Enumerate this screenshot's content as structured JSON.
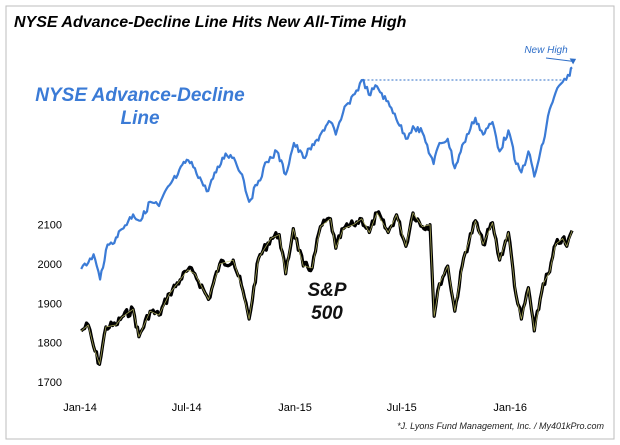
{
  "chart_data": {
    "type": "line",
    "title": "NYSE Advance-Decline Line Hits New All-Time High",
    "source": "*J. Lyons Fund Management, Inc. / My401kPro.com",
    "annotation": "New High",
    "x_tick_labels": [
      "Jan-14",
      "Jul-14",
      "Jan-15",
      "Jul-15",
      "Jan-16"
    ],
    "x_ticks": [
      "2014-01-01",
      "2014-07-01",
      "2015-01-01",
      "2015-07-01",
      "2016-01-01"
    ],
    "x_range": [
      "2013-12-15",
      "2016-04-20"
    ],
    "ylim": [
      1700,
      2150
    ],
    "y_ticks": [
      1700,
      1800,
      1900,
      2000,
      2100
    ],
    "grid": false,
    "series": [
      {
        "name": "NYSE Advance-Decline Line",
        "label_lines": [
          "NYSE Advance-Decline",
          "Line"
        ],
        "color": "#3b7bd6",
        "axis": "none",
        "points": [
          [
            "2014-01-03",
            0.1
          ],
          [
            "2014-01-15",
            0.13
          ],
          [
            "2014-01-24",
            0.17
          ],
          [
            "2014-02-04",
            0.05
          ],
          [
            "2014-02-14",
            0.19
          ],
          [
            "2014-03-03",
            0.25
          ],
          [
            "2014-03-13",
            0.29
          ],
          [
            "2014-04-01",
            0.36
          ],
          [
            "2014-04-14",
            0.33
          ],
          [
            "2014-04-30",
            0.42
          ],
          [
            "2014-05-15",
            0.4
          ],
          [
            "2014-06-02",
            0.5
          ],
          [
            "2014-06-16",
            0.55
          ],
          [
            "2014-07-01",
            0.62
          ],
          [
            "2014-07-15",
            0.58
          ],
          [
            "2014-08-04",
            0.47
          ],
          [
            "2014-08-20",
            0.56
          ],
          [
            "2014-09-05",
            0.65
          ],
          [
            "2014-09-19",
            0.63
          ],
          [
            "2014-10-03",
            0.55
          ],
          [
            "2014-10-15",
            0.42
          ],
          [
            "2014-10-31",
            0.52
          ],
          [
            "2014-11-14",
            0.61
          ],
          [
            "2014-12-01",
            0.66
          ],
          [
            "2014-12-16",
            0.55
          ],
          [
            "2014-12-30",
            0.7
          ],
          [
            "2015-01-15",
            0.63
          ],
          [
            "2015-02-02",
            0.69
          ],
          [
            "2015-02-17",
            0.76
          ],
          [
            "2015-03-02",
            0.8
          ],
          [
            "2015-03-11",
            0.74
          ],
          [
            "2015-03-23",
            0.84
          ],
          [
            "2015-04-01",
            0.89
          ],
          [
            "2015-04-15",
            0.95
          ],
          [
            "2015-04-27",
            1.0
          ],
          [
            "2015-05-06",
            0.93
          ],
          [
            "2015-05-20",
            0.97
          ],
          [
            "2015-06-05",
            0.9
          ],
          [
            "2015-06-19",
            0.84
          ],
          [
            "2015-07-08",
            0.72
          ],
          [
            "2015-07-20",
            0.78
          ],
          [
            "2015-08-05",
            0.75
          ],
          [
            "2015-08-24",
            0.6
          ],
          [
            "2015-09-03",
            0.7
          ],
          [
            "2015-09-17",
            0.72
          ],
          [
            "2015-09-29",
            0.58
          ],
          [
            "2015-10-14",
            0.7
          ],
          [
            "2015-11-03",
            0.82
          ],
          [
            "2015-11-16",
            0.74
          ],
          [
            "2015-12-02",
            0.8
          ],
          [
            "2015-12-14",
            0.66
          ],
          [
            "2015-12-29",
            0.76
          ],
          [
            "2016-01-11",
            0.6
          ],
          [
            "2016-01-20",
            0.56
          ],
          [
            "2016-02-01",
            0.66
          ],
          [
            "2016-02-11",
            0.54
          ],
          [
            "2016-02-26",
            0.7
          ],
          [
            "2016-03-08",
            0.86
          ],
          [
            "2016-03-18",
            0.94
          ],
          [
            "2016-03-30",
            0.99
          ],
          [
            "2016-04-11",
            1.02
          ],
          [
            "2016-04-15",
            1.06
          ]
        ]
      },
      {
        "name": "S&P 500",
        "label_lines": [
          "S&P",
          "500"
        ],
        "color": "#111111",
        "axis": "left",
        "points": [
          [
            "2014-01-03",
            1830
          ],
          [
            "2014-01-15",
            1845
          ],
          [
            "2014-01-24",
            1790
          ],
          [
            "2014-02-03",
            1745
          ],
          [
            "2014-02-14",
            1840
          ],
          [
            "2014-03-03",
            1845
          ],
          [
            "2014-03-13",
            1865
          ],
          [
            "2014-04-01",
            1885
          ],
          [
            "2014-04-11",
            1815
          ],
          [
            "2014-04-30",
            1880
          ],
          [
            "2014-05-15",
            1870
          ],
          [
            "2014-06-02",
            1925
          ],
          [
            "2014-06-20",
            1960
          ],
          [
            "2014-07-03",
            1985
          ],
          [
            "2014-07-15",
            1975
          ],
          [
            "2014-08-07",
            1910
          ],
          [
            "2014-08-26",
            2000
          ],
          [
            "2014-09-18",
            2010
          ],
          [
            "2014-10-02",
            1945
          ],
          [
            "2014-10-15",
            1860
          ],
          [
            "2014-10-31",
            2015
          ],
          [
            "2014-11-21",
            2065
          ],
          [
            "2014-12-05",
            2075
          ],
          [
            "2014-12-16",
            1975
          ],
          [
            "2014-12-29",
            2090
          ],
          [
            "2015-01-15",
            1995
          ],
          [
            "2015-01-30",
            1990
          ],
          [
            "2015-02-13",
            2095
          ],
          [
            "2015-03-02",
            2115
          ],
          [
            "2015-03-11",
            2040
          ],
          [
            "2015-03-24",
            2090
          ],
          [
            "2015-04-10",
            2100
          ],
          [
            "2015-04-24",
            2115
          ],
          [
            "2015-05-07",
            2080
          ],
          [
            "2015-05-20",
            2130
          ],
          [
            "2015-06-08",
            2080
          ],
          [
            "2015-06-22",
            2125
          ],
          [
            "2015-07-08",
            2045
          ],
          [
            "2015-07-20",
            2130
          ],
          [
            "2015-08-05",
            2095
          ],
          [
            "2015-08-18",
            2100
          ],
          [
            "2015-08-25",
            1867
          ],
          [
            "2015-09-03",
            1950
          ],
          [
            "2015-09-17",
            1995
          ],
          [
            "2015-09-29",
            1880
          ],
          [
            "2015-10-14",
            2015
          ],
          [
            "2015-11-03",
            2110
          ],
          [
            "2015-11-16",
            2050
          ],
          [
            "2015-12-02",
            2105
          ],
          [
            "2015-12-14",
            2010
          ],
          [
            "2015-12-29",
            2080
          ],
          [
            "2016-01-11",
            1920
          ],
          [
            "2016-01-20",
            1860
          ],
          [
            "2016-02-01",
            1940
          ],
          [
            "2016-02-11",
            1830
          ],
          [
            "2016-02-26",
            1950
          ],
          [
            "2016-03-08",
            1980
          ],
          [
            "2016-03-18",
            2050
          ],
          [
            "2016-03-30",
            2065
          ],
          [
            "2016-04-06",
            2045
          ],
          [
            "2016-04-15",
            2085
          ]
        ]
      }
    ]
  }
}
